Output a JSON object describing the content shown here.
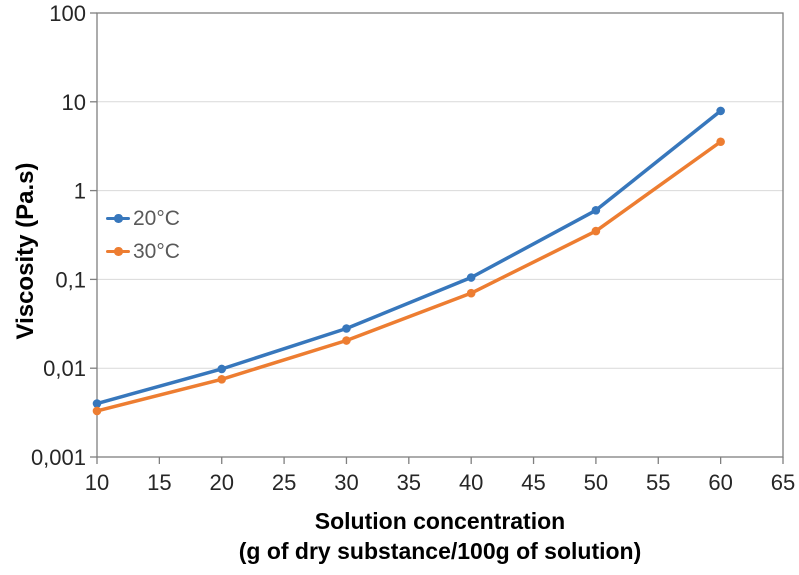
{
  "chart_data": {
    "type": "line",
    "title": "",
    "x_axis_title_line1": "Solution concentration",
    "x_axis_title_line2": "(g of dry substance/100g of solution)",
    "y_axis_title": "Viscosity (Pa.s)",
    "x": [
      10,
      20,
      30,
      40,
      50,
      60
    ],
    "series": [
      {
        "name": "20°C",
        "color": "#3777BC",
        "values": [
          0.004,
          0.0098,
          0.028,
          0.105,
          0.6,
          7.9
        ]
      },
      {
        "name": "30°C",
        "color": "#ED7D31",
        "values": [
          0.0033,
          0.0075,
          0.0205,
          0.07,
          0.35,
          3.55
        ]
      }
    ],
    "x_ticks": [
      {
        "value": 10,
        "label": "10"
      },
      {
        "value": 15,
        "label": "15"
      },
      {
        "value": 20,
        "label": "20"
      },
      {
        "value": 25,
        "label": "25"
      },
      {
        "value": 30,
        "label": "30"
      },
      {
        "value": 35,
        "label": "35"
      },
      {
        "value": 40,
        "label": "40"
      },
      {
        "value": 45,
        "label": "45"
      },
      {
        "value": 50,
        "label": "50"
      },
      {
        "value": 55,
        "label": "55"
      },
      {
        "value": 60,
        "label": "60"
      },
      {
        "value": 65,
        "label": "65"
      }
    ],
    "y_ticks": [
      {
        "value": 100,
        "label": "100"
      },
      {
        "value": 10,
        "label": "10"
      },
      {
        "value": 1,
        "label": "1"
      },
      {
        "value": 0.1,
        "label": "0,1"
      },
      {
        "value": 0.01,
        "label": "0,01"
      },
      {
        "value": 0.001,
        "label": "0,001"
      }
    ],
    "xlim": [
      10,
      65
    ],
    "ylim": [
      0.001,
      100
    ],
    "x_scale": "linear",
    "y_scale": "log",
    "grid": "horizontal-major-only",
    "legend_position": "inside-upper-left"
  },
  "styles": {
    "background_color": "#FFFFFF",
    "grid_color": "#D9D9D9",
    "axis_line_color": "#7F7F7F",
    "tick_label_color": "#262626",
    "axis_title_color": "#000000",
    "legend_text_color": "#595959",
    "series_colors": [
      "#3777BC",
      "#ED7D31"
    ]
  }
}
